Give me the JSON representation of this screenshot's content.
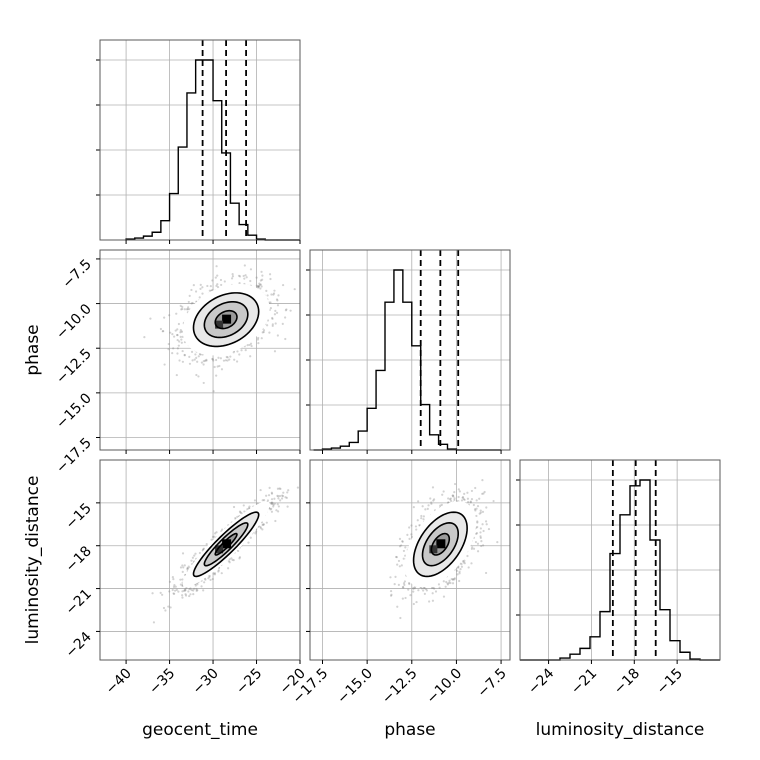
{
  "chart_data": {
    "type": "corner",
    "parameters": [
      "geocent_time",
      "phase",
      "luminosity_distance"
    ],
    "ranges": {
      "geocent_time": [
        -43,
        -20
      ],
      "phase": [
        -18.2,
        -7.0
      ],
      "luminosity_distance": [
        -26,
        -12
      ]
    },
    "ticks": {
      "geocent_time": [
        -40,
        -35,
        -30,
        -25,
        -20
      ],
      "phase": [
        -17.5,
        -15.0,
        -12.5,
        -10.0,
        -7.5
      ],
      "luminosity_distance": [
        -24,
        -21,
        -18,
        -15
      ]
    },
    "tick_labels": {
      "geocent_time": [
        "−40",
        "−35",
        "−30",
        "−25",
        "−20"
      ],
      "phase": [
        "−17.5",
        "−15.0",
        "−12.5",
        "−10.0",
        "−7.5"
      ],
      "luminosity_distance": [
        "−24",
        "−21",
        "−18",
        "−15"
      ]
    },
    "axis_labels": {
      "geocent_time": "geocent_time",
      "phase": "phase",
      "luminosity_distance": "luminosity_distance"
    },
    "quantiles": {
      "geocent_time": [
        -31.2,
        -28.5,
        -26.2
      ],
      "phase": [
        -12.0,
        -10.9,
        -9.9
      ],
      "luminosity_distance": [
        -19.5,
        -17.9,
        -16.5
      ]
    },
    "histograms": {
      "geocent_time": {
        "edges": [
          -40,
          -39,
          -38,
          -37,
          -36,
          -35,
          -34,
          -33,
          -32,
          -31,
          -30,
          -29,
          -28,
          -27,
          -26,
          -25,
          -24,
          -23,
          -22,
          -21,
          -20
        ],
        "counts": [
          0.005,
          0.01,
          0.02,
          0.04,
          0.1,
          0.24,
          0.48,
          0.76,
          0.93,
          0.93,
          0.72,
          0.45,
          0.19,
          0.08,
          0.025,
          0.005,
          0,
          0,
          0,
          0
        ]
      },
      "phase": {
        "edges": [
          -18.0,
          -17.5,
          -17.0,
          -16.5,
          -16.0,
          -15.5,
          -15.0,
          -14.5,
          -14.0,
          -13.5,
          -13.0,
          -12.5,
          -12.0,
          -11.5,
          -11.0,
          -10.5,
          -10.0,
          -9.5,
          -9.0,
          -8.5,
          -8.0,
          -7.5
        ],
        "counts": [
          0,
          0.005,
          0.01,
          0.02,
          0.04,
          0.1,
          0.22,
          0.42,
          0.78,
          0.95,
          0.78,
          0.55,
          0.24,
          0.08,
          0.03,
          0.005,
          0,
          0,
          0,
          0,
          0
        ]
      },
      "luminosity_distance": {
        "edges": [
          -26.0,
          -25.3,
          -24.6,
          -23.9,
          -23.2,
          -22.5,
          -21.8,
          -21.1,
          -20.4,
          -19.7,
          -19.0,
          -18.3,
          -17.6,
          -16.9,
          -16.2,
          -15.5,
          -14.8,
          -14.1,
          -13.4,
          -12.7,
          -12.0
        ],
        "counts": [
          0,
          0,
          0,
          0,
          0.01,
          0.03,
          0.06,
          0.12,
          0.25,
          0.55,
          0.75,
          0.9,
          0.93,
          0.62,
          0.26,
          0.1,
          0.04,
          0.005,
          0,
          0
        ]
      }
    },
    "pairs": [
      {
        "x": "geocent_time",
        "y": "phase",
        "mean": [
          -28.5,
          -10.9
        ],
        "std": [
          2.5,
          1.0
        ],
        "correlation": 0.3,
        "contour_sigmas": [
          0.5,
          1.0,
          1.5,
          2.0
        ],
        "n_points": 1400
      },
      {
        "x": "geocent_time",
        "y": "luminosity_distance",
        "mean": [
          -28.5,
          -17.9
        ],
        "std": [
          2.5,
          1.5
        ],
        "correlation": 0.92,
        "contour_sigmas": [
          0.5,
          1.0,
          1.5,
          2.0
        ],
        "n_points": 1400
      },
      {
        "x": "phase",
        "y": "luminosity_distance",
        "mean": [
          -10.9,
          -17.9
        ],
        "std": [
          1.0,
          1.5
        ],
        "correlation": 0.5,
        "contour_sigmas": [
          0.5,
          1.0,
          1.5,
          2.0
        ],
        "n_points": 1400
      }
    ],
    "grid": true,
    "colors": {
      "line": "#000000",
      "points": "#808080",
      "grid": "#b0b0b0"
    }
  }
}
